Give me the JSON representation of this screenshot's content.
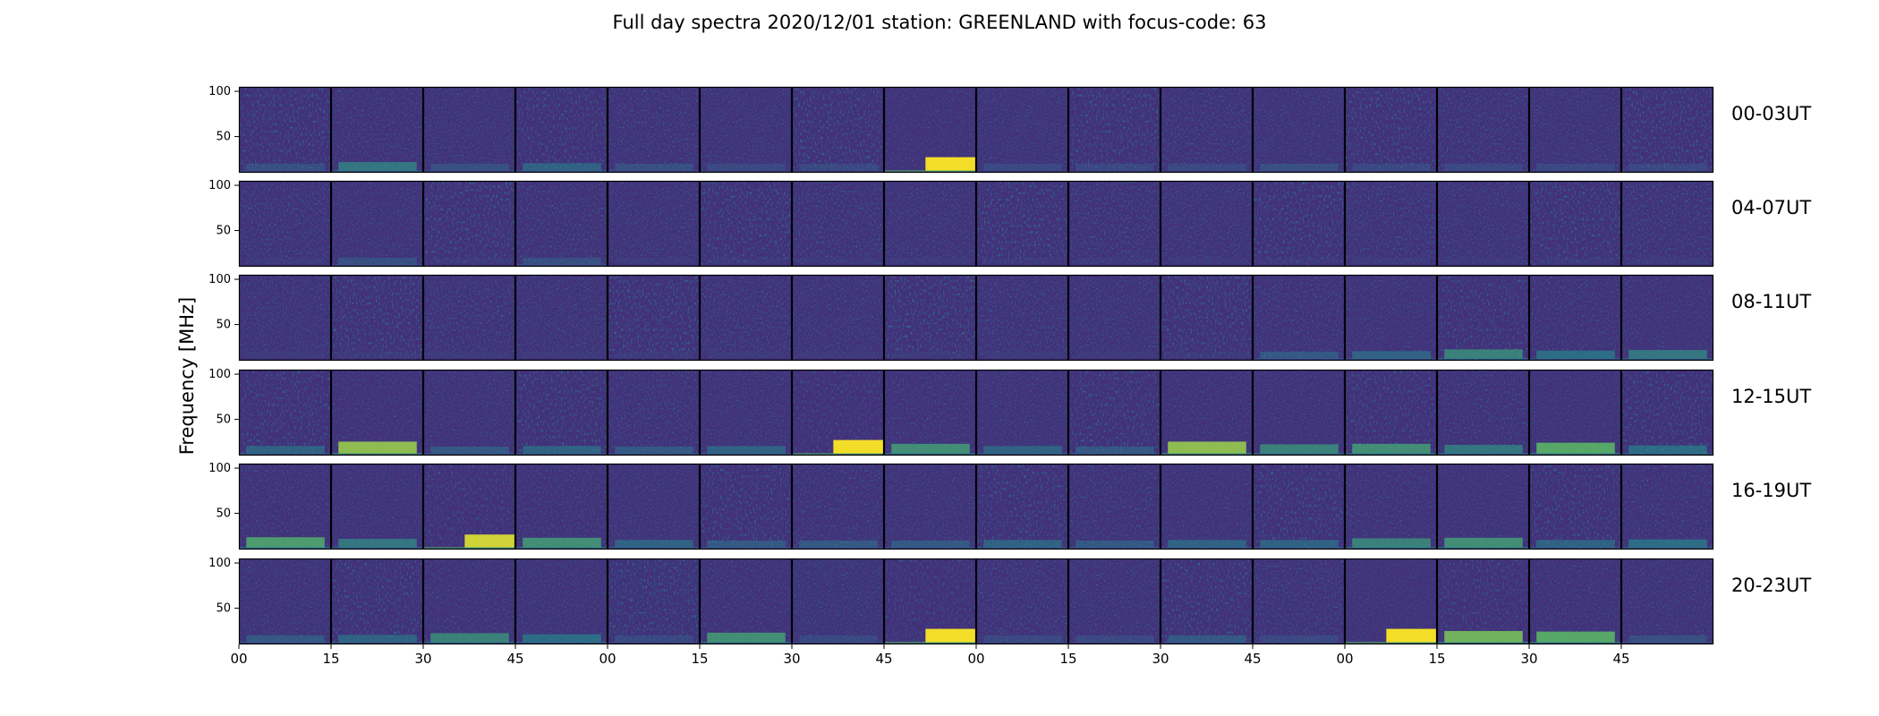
{
  "chart_data": {
    "type": "heatmap",
    "title": "Full day spectra 2020/12/01 station: GREENLAND with focus-code: 63",
    "ylabel": "Frequency [MHz]",
    "xlabel": "",
    "ylim": [
      10,
      105
    ],
    "y_ticks": [
      50,
      100
    ],
    "x_tick_labels": [
      "00",
      "15",
      "30",
      "45",
      "00",
      "15",
      "30",
      "45",
      "00",
      "15",
      "30",
      "45",
      "00",
      "15",
      "30",
      "45"
    ],
    "panels_per_row": 16,
    "minutes_per_panel": 15,
    "colormap": "viridis",
    "grid": false,
    "rows": [
      {
        "label": "00-03UT",
        "activity": [
          0.35,
          0.55,
          0.35,
          0.45,
          0.35,
          0.3,
          0.3,
          1.0,
          0.3,
          0.3,
          0.3,
          0.35,
          0.3,
          0.3,
          0.3,
          0.3
        ]
      },
      {
        "label": "04-07UT",
        "activity": [
          0.2,
          0.35,
          0.2,
          0.35,
          0.2,
          0.2,
          0.2,
          0.2,
          0.2,
          0.2,
          0.2,
          0.2,
          0.2,
          0.2,
          0.2,
          0.2
        ]
      },
      {
        "label": "08-11UT",
        "activity": [
          0.2,
          0.2,
          0.2,
          0.2,
          0.2,
          0.2,
          0.2,
          0.2,
          0.2,
          0.2,
          0.2,
          0.4,
          0.45,
          0.6,
          0.5,
          0.55
        ]
      },
      {
        "label": "12-15UT",
        "activity": [
          0.45,
          0.85,
          0.4,
          0.45,
          0.4,
          0.45,
          1.0,
          0.65,
          0.45,
          0.4,
          0.85,
          0.6,
          0.65,
          0.55,
          0.75,
          0.5
        ]
      },
      {
        "label": "16-19UT",
        "activity": [
          0.7,
          0.55,
          0.95,
          0.65,
          0.45,
          0.4,
          0.4,
          0.4,
          0.45,
          0.4,
          0.45,
          0.45,
          0.6,
          0.65,
          0.45,
          0.5
        ]
      },
      {
        "label": "20-23UT",
        "activity": [
          0.4,
          0.45,
          0.6,
          0.5,
          0.3,
          0.65,
          0.3,
          1.0,
          0.3,
          0.3,
          0.4,
          0.3,
          1.0,
          0.8,
          0.75,
          0.35
        ]
      }
    ]
  }
}
